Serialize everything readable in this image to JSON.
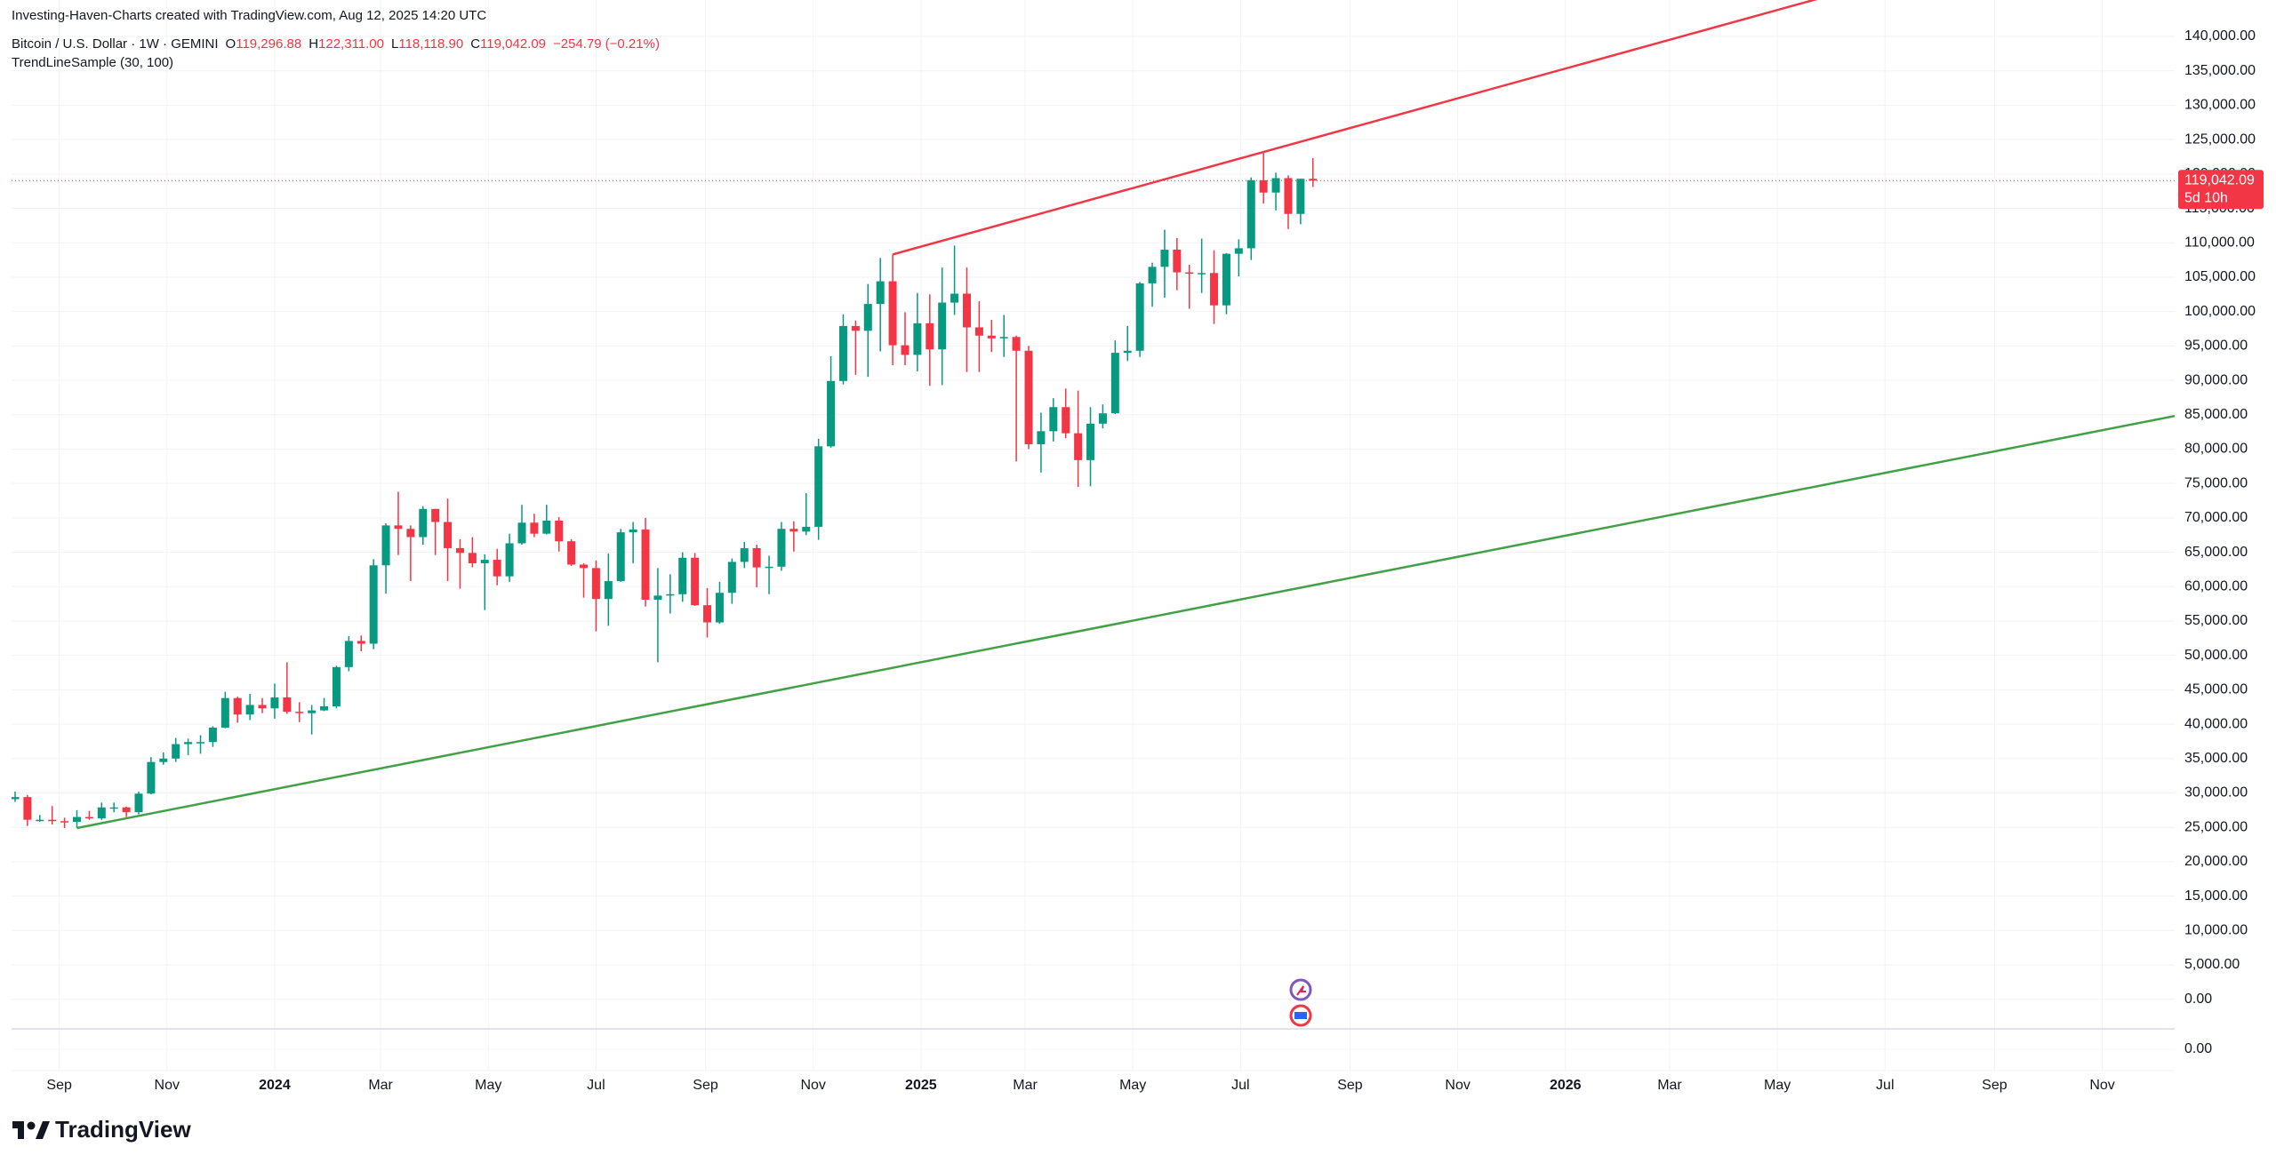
{
  "chart_data": {
    "type": "candlestick",
    "source": "Investing-Haven-Charts created with TradingView.com, Aug 12, 2025 14:20 UTC",
    "title": "Bitcoin / U.S. Dollar · 1W · GEMINI",
    "indicator": "TrendLineSample (30, 100)",
    "ohlc_legend": [
      {
        "key": "O",
        "value": 119296.88,
        "label": "119,296.88"
      },
      {
        "key": "H",
        "value": 122311.0,
        "label": "122,311.00"
      },
      {
        "key": "L",
        "value": 118118.9,
        "label": "118,118.90"
      },
      {
        "key": "C",
        "value": 119042.09,
        "label": "119,042.09"
      }
    ],
    "change": {
      "value": -254.79,
      "label": "−254.79"
    },
    "change_percent": {
      "value": -0.21,
      "label": "(−0.21%)"
    },
    "up_color": "#089981",
    "down_color": "#f23645",
    "x": [
      "2023-08-07",
      "2023-08-14",
      "2023-08-21",
      "2023-08-28",
      "2023-09-04",
      "2023-09-11",
      "2023-09-18",
      "2023-09-25",
      "2023-10-02",
      "2023-10-09",
      "2023-10-16",
      "2023-10-23",
      "2023-10-30",
      "2023-11-06",
      "2023-11-13",
      "2023-11-20",
      "2023-11-27",
      "2023-12-04",
      "2023-12-11",
      "2023-12-18",
      "2023-12-25",
      "2024-01-01",
      "2024-01-08",
      "2024-01-15",
      "2024-01-22",
      "2024-01-29",
      "2024-02-05",
      "2024-02-12",
      "2024-02-19",
      "2024-02-26",
      "2024-03-04",
      "2024-03-11",
      "2024-03-18",
      "2024-03-25",
      "2024-04-01",
      "2024-04-08",
      "2024-04-15",
      "2024-04-22",
      "2024-04-29",
      "2024-05-06",
      "2024-05-13",
      "2024-05-20",
      "2024-05-27",
      "2024-06-03",
      "2024-06-10",
      "2024-06-17",
      "2024-06-24",
      "2024-07-01",
      "2024-07-08",
      "2024-07-15",
      "2024-07-22",
      "2024-07-29",
      "2024-08-05",
      "2024-08-12",
      "2024-08-19",
      "2024-08-26",
      "2024-09-02",
      "2024-09-09",
      "2024-09-16",
      "2024-09-23",
      "2024-09-30",
      "2024-10-07",
      "2024-10-14",
      "2024-10-21",
      "2024-10-28",
      "2024-11-04",
      "2024-11-11",
      "2024-11-18",
      "2024-11-25",
      "2024-12-02",
      "2024-12-09",
      "2024-12-16",
      "2024-12-23",
      "2024-12-30",
      "2025-01-06",
      "2025-01-13",
      "2025-01-20",
      "2025-01-27",
      "2025-02-03",
      "2025-02-10",
      "2025-02-17",
      "2025-02-24",
      "2025-03-03",
      "2025-03-10",
      "2025-03-17",
      "2025-03-24",
      "2025-03-31",
      "2025-04-07",
      "2025-04-14",
      "2025-04-21",
      "2025-04-28",
      "2025-05-05",
      "2025-05-12",
      "2025-05-19",
      "2025-05-26",
      "2025-06-02",
      "2025-06-09",
      "2025-06-16",
      "2025-06-23",
      "2025-06-30",
      "2025-07-07",
      "2025-07-14",
      "2025-07-21",
      "2025-07-28",
      "2025-08-04",
      "2025-08-11"
    ],
    "open": [
      29100,
      29400,
      26100,
      26100,
      25900,
      25800,
      26500,
      26300,
      27900,
      27900,
      27200,
      29900,
      34500,
      35000,
      37100,
      37400,
      37400,
      39500,
      43800,
      41400,
      42800,
      42300,
      43900,
      41800,
      41600,
      42000,
      42600,
      48300,
      52100,
      51700,
      63100,
      68900,
      68400,
      67200,
      71300,
      69400,
      65600,
      64900,
      63400,
      63900,
      61500,
      66300,
      69300,
      67700,
      69600,
      66600,
      63200,
      62700,
      58200,
      60800,
      67900,
      68300,
      58100,
      58700,
      58900,
      64200,
      57300,
      54800,
      59100,
      63600,
      65600,
      62800,
      62900,
      68400,
      68000,
      68700,
      80400,
      89900,
      97900,
      97200,
      101100,
      104400,
      95100,
      93700,
      98300,
      94500,
      101300,
      102600,
      97700,
      96500,
      96100,
      96300,
      94300,
      80700,
      82600,
      86100,
      82300,
      78400,
      83700,
      85200,
      94000,
      94300,
      104100,
      106500,
      109000,
      105700,
      105500,
      105600,
      100900,
      108400,
      109200,
      119100,
      117300,
      119400,
      114200,
      119296.88
    ],
    "high": [
      30200,
      29700,
      26800,
      28100,
      26400,
      27500,
      27400,
      28600,
      28600,
      28000,
      30200,
      35200,
      35900,
      38000,
      37900,
      38400,
      39700,
      44700,
      44000,
      44400,
      43800,
      45900,
      49000,
      43200,
      42800,
      43800,
      48500,
      52800,
      52900,
      64000,
      69200,
      73800,
      68900,
      71700,
      71300,
      72800,
      66900,
      67200,
      64700,
      65500,
      67700,
      71900,
      70600,
      71900,
      70100,
      66900,
      63400,
      63800,
      64800,
      68400,
      69400,
      70000,
      62700,
      61800,
      65000,
      64900,
      59800,
      60700,
      64100,
      66500,
      66100,
      64500,
      69400,
      69500,
      73600,
      81500,
      93500,
      99600,
      98700,
      104000,
      107800,
      108300,
      99900,
      102700,
      102500,
      106400,
      109600,
      106400,
      101500,
      98800,
      99500,
      96500,
      95000,
      85300,
      87400,
      88800,
      88500,
      86100,
      86500,
      95800,
      97900,
      104300,
      107100,
      111900,
      110700,
      106800,
      110600,
      108900,
      108500,
      110500,
      119500,
      123200,
      120200,
      119800,
      119300,
      122311.0
    ],
    "low": [
      28700,
      25200,
      25800,
      25400,
      24900,
      24900,
      26100,
      26100,
      27200,
      26500,
      26900,
      29800,
      34100,
      34500,
      35500,
      35700,
      36700,
      39400,
      40200,
      40600,
      41600,
      40800,
      41500,
      40300,
      38500,
      41900,
      42300,
      47700,
      50600,
      50900,
      59000,
      64600,
      60800,
      66100,
      64600,
      60800,
      59700,
      62800,
      56600,
      60200,
      60700,
      66100,
      67200,
      67600,
      65100,
      63000,
      58400,
      53500,
      54300,
      60700,
      63400,
      57100,
      49000,
      56100,
      57800,
      57200,
      52600,
      54600,
      57500,
      62700,
      59900,
      58900,
      62300,
      65100,
      67500,
      66800,
      80200,
      89400,
      90800,
      90500,
      94200,
      92200,
      92200,
      91300,
      89200,
      89300,
      99500,
      91200,
      91200,
      94100,
      93400,
      78200,
      80000,
      76600,
      81100,
      81600,
      74500,
      74600,
      83000,
      85100,
      92800,
      93400,
      100700,
      102000,
      103100,
      100400,
      102700,
      98200,
      99600,
      105100,
      107500,
      115700,
      114700,
      112000,
      112700,
      118118.9
    ],
    "close": [
      29400,
      26100,
      26100,
      25900,
      25800,
      26500,
      26300,
      27900,
      27900,
      27200,
      29900,
      34500,
      35000,
      37100,
      37400,
      37400,
      39500,
      43800,
      41400,
      42800,
      42300,
      43900,
      41800,
      41600,
      42000,
      42600,
      48300,
      52100,
      51700,
      63100,
      68900,
      68400,
      67200,
      71300,
      69400,
      65600,
      64900,
      63400,
      63900,
      61500,
      66300,
      69300,
      67700,
      69600,
      66600,
      63200,
      62700,
      58200,
      60800,
      67900,
      68300,
      58100,
      58700,
      58900,
      64200,
      57300,
      54800,
      59100,
      63600,
      65600,
      62800,
      62900,
      68400,
      68000,
      68700,
      80400,
      89900,
      97900,
      97200,
      101100,
      104400,
      95100,
      93700,
      98300,
      94500,
      101300,
      102600,
      97700,
      96500,
      96100,
      96300,
      94300,
      80700,
      82600,
      86100,
      82300,
      78400,
      83700,
      85200,
      94000,
      94300,
      104100,
      106500,
      109000,
      105700,
      105500,
      105600,
      100900,
      108400,
      109200,
      119100,
      117300,
      119400,
      114200,
      119300,
      119042.09
    ],
    "trendlines": [
      {
        "color": "#f23645",
        "points": [
          [
            "2024-12-16",
            108300
          ],
          [
            "2025-07-14",
            123200
          ]
        ],
        "extend": "right"
      },
      {
        "color": "#43a047",
        "points": [
          [
            "2023-09-11",
            24900
          ],
          [
            "2025-08-11",
            60200
          ]
        ],
        "extend": "right"
      }
    ],
    "last_price": {
      "value": 119042.09,
      "label": "119,042.09"
    },
    "countdown": "5d 10h",
    "xlim": [
      "2023-08-05",
      "2026-12-12"
    ],
    "xticks": [
      {
        "value": "2023-09",
        "label": "Sep"
      },
      {
        "value": "2023-11",
        "label": "Nov"
      },
      {
        "value": "2024-01",
        "label": "2024"
      },
      {
        "value": "2024-03",
        "label": "Mar"
      },
      {
        "value": "2024-05",
        "label": "May"
      },
      {
        "value": "2024-07",
        "label": "Jul"
      },
      {
        "value": "2024-09",
        "label": "Sep"
      },
      {
        "value": "2024-11",
        "label": "Nov"
      },
      {
        "value": "2025-01",
        "label": "2025"
      },
      {
        "value": "2025-03",
        "label": "Mar"
      },
      {
        "value": "2025-05",
        "label": "May"
      },
      {
        "value": "2025-07",
        "label": "Jul"
      },
      {
        "value": "2025-09",
        "label": "Sep"
      },
      {
        "value": "2025-11",
        "label": "Nov"
      },
      {
        "value": "2026-01",
        "label": "2026"
      },
      {
        "value": "2026-03",
        "label": "Mar"
      },
      {
        "value": "2026-05",
        "label": "May"
      },
      {
        "value": "2026-07",
        "label": "Jul"
      },
      {
        "value": "2026-09",
        "label": "Sep"
      },
      {
        "value": "2026-11",
        "label": "Nov"
      }
    ],
    "ylim": [
      -4300,
      145300
    ],
    "yticks": [
      {
        "value": 0,
        "label": "0.00"
      },
      {
        "value": 5000,
        "label": "5,000.00"
      },
      {
        "value": 10000,
        "label": "10,000.00"
      },
      {
        "value": 15000,
        "label": "15,000.00"
      },
      {
        "value": 20000,
        "label": "20,000.00"
      },
      {
        "value": 25000,
        "label": "25,000.00"
      },
      {
        "value": 30000,
        "label": "30,000.00"
      },
      {
        "value": 35000,
        "label": "35,000.00"
      },
      {
        "value": 40000,
        "label": "40,000.00"
      },
      {
        "value": 45000,
        "label": "45,000.00"
      },
      {
        "value": 50000,
        "label": "50,000.00"
      },
      {
        "value": 55000,
        "label": "55,000.00"
      },
      {
        "value": 60000,
        "label": "60,000.00"
      },
      {
        "value": 65000,
        "label": "65,000.00"
      },
      {
        "value": 70000,
        "label": "70,000.00"
      },
      {
        "value": 75000,
        "label": "75,000.00"
      },
      {
        "value": 80000,
        "label": "80,000.00"
      },
      {
        "value": 85000,
        "label": "85,000.00"
      },
      {
        "value": 90000,
        "label": "90,000.00"
      },
      {
        "value": 95000,
        "label": "95,000.00"
      },
      {
        "value": 100000,
        "label": "100,000.00"
      },
      {
        "value": 105000,
        "label": "105,000.00"
      },
      {
        "value": 110000,
        "label": "110,000.00"
      },
      {
        "value": 115000,
        "label": "115,000.00"
      },
      {
        "value": 120000,
        "label": "120,000.00"
      },
      {
        "value": 125000,
        "label": "125,000.00"
      },
      {
        "value": 130000,
        "label": "130,000.00"
      },
      {
        "value": 135000,
        "label": "135,000.00"
      },
      {
        "value": 140000,
        "label": "140,000.00"
      }
    ],
    "lower_pane_ticks": [
      {
        "value": 0,
        "label": "0.00"
      }
    ],
    "grid": true,
    "brand": "TradingView"
  }
}
